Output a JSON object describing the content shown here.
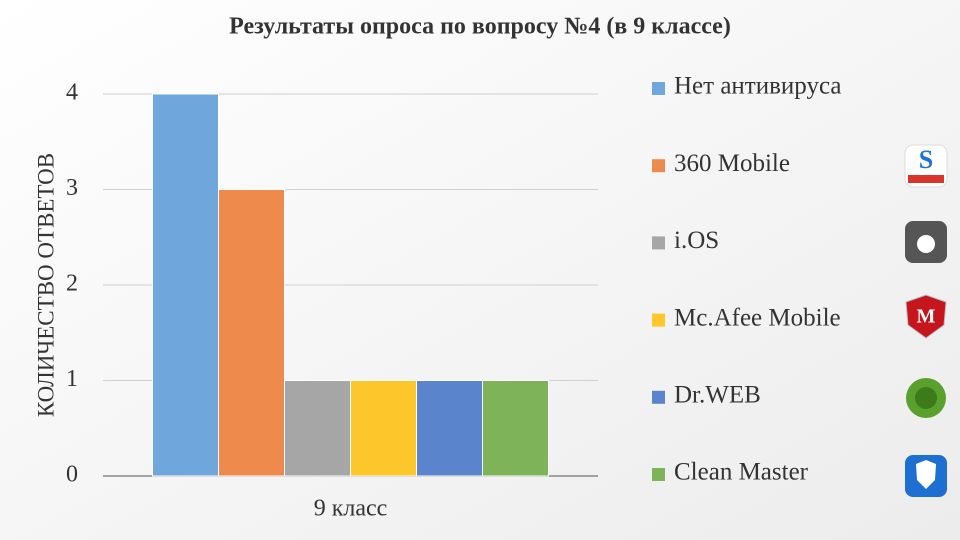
{
  "chart_data": {
    "type": "bar",
    "title": "Результаты опроса по вопросу №4 (в 9 классе)",
    "y_label": "КОЛИЧЕСТВО ОТВЕТОВ",
    "categories": [
      "9 класс"
    ],
    "series": [
      {
        "name": "Нет антивируса",
        "color": "#6fa6db",
        "values": [
          4
        ]
      },
      {
        "name": "360 Mobile",
        "color": "#ee8a4c",
        "values": [
          3
        ]
      },
      {
        "name": "i.OS",
        "color": "#a6a6a6",
        "values": [
          1
        ]
      },
      {
        "name": "Mc.Afee Mobile",
        "color": "#fdc62a",
        "values": [
          1
        ]
      },
      {
        "name": "Dr.WEB",
        "color": "#5a84cb",
        "values": [
          1
        ]
      },
      {
        "name": "Clean Master",
        "color": "#7eb35a",
        "values": [
          1
        ]
      }
    ],
    "ylim": [
      0,
      4
    ],
    "yticks": [
      0,
      1,
      2,
      3,
      4
    ],
    "grid": true
  }
}
